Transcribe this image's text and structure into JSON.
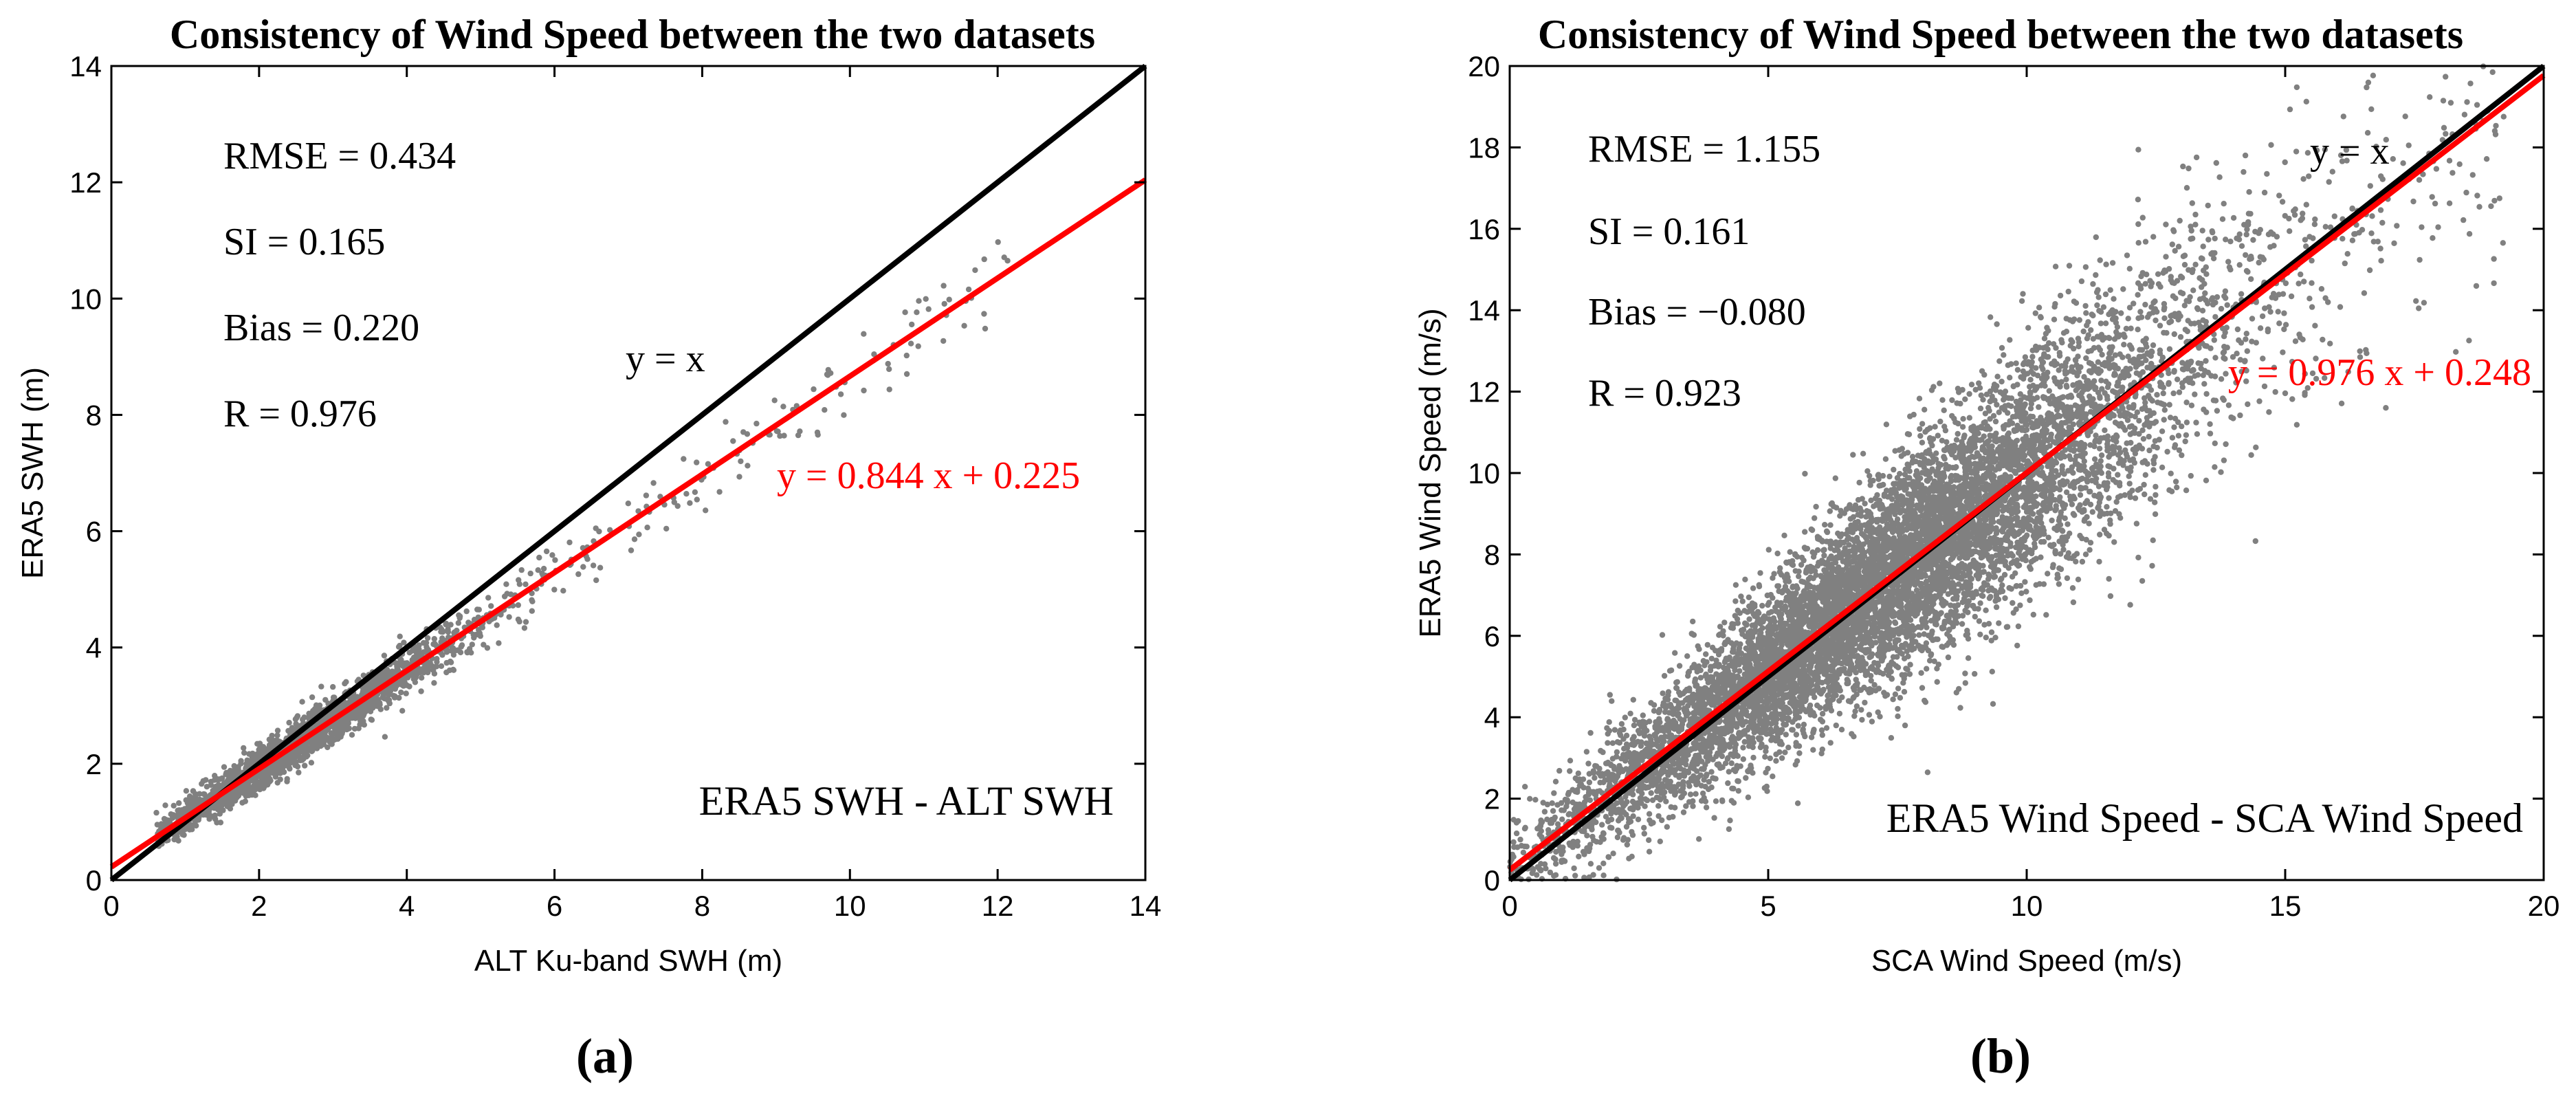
{
  "chart_data": [
    {
      "type": "scatter",
      "panel_label": "(a)",
      "title": "Consistency of Wind Speed between the two datasets",
      "xlabel": "ALT Ku-band SWH (m)",
      "ylabel": "ERA5 SWH (m)",
      "xlim": [
        0,
        14
      ],
      "ylim": [
        0,
        14
      ],
      "xticks": [
        0,
        2,
        4,
        6,
        8,
        10,
        12,
        14
      ],
      "yticks": [
        0,
        2,
        4,
        6,
        8,
        10,
        12,
        14
      ],
      "grid": false,
      "stats": [
        "RMSE = 0.434",
        "SI = 0.165",
        "Bias = 0.220",
        "R = 0.976"
      ],
      "identity_label": "y = x",
      "fit_label": "y = 0.844 x + 0.225",
      "fit": {
        "slope": 0.844,
        "intercept": 0.225
      },
      "dataset_label": "ERA5 SWH - ALT SWH",
      "scatter_color": "#808080",
      "fit_color": "#ff0000",
      "identity_color": "#000000",
      "scatter_params": {
        "count": 2400,
        "x_min": 0.6,
        "x_max": 12.2,
        "noise_sd": 0.25,
        "x_mean": 2.4,
        "x_sd": 1.3
      }
    },
    {
      "type": "scatter",
      "panel_label": "(b)",
      "title": "Consistency of Wind Speed between the two datasets",
      "xlabel": "SCA Wind Speed (m/s)",
      "ylabel": "ERA5 Wind Speed (m/s)",
      "xlim": [
        0,
        20
      ],
      "ylim": [
        0,
        20
      ],
      "xticks": [
        0,
        5,
        10,
        15,
        20
      ],
      "yticks": [
        0,
        2,
        4,
        6,
        8,
        10,
        12,
        14,
        16,
        18,
        20
      ],
      "grid": false,
      "stats": [
        "RMSE = 1.155",
        "SI = 0.161",
        "Bias = −0.080",
        "R = 0.923"
      ],
      "identity_label": "y = x",
      "fit_label": "y = 0.976 x + 0.248",
      "fit": {
        "slope": 0.976,
        "intercept": 0.248
      },
      "dataset_label": "ERA5 Wind Speed - SCA Wind Speed",
      "scatter_color": "#808080",
      "fit_color": "#ff0000",
      "identity_color": "#000000",
      "scatter_params": {
        "count": 9000,
        "x_min": 0,
        "x_max": 19.3,
        "noise_sd": 1.1,
        "x_mean": 7.3,
        "x_sd": 3.0
      }
    }
  ]
}
